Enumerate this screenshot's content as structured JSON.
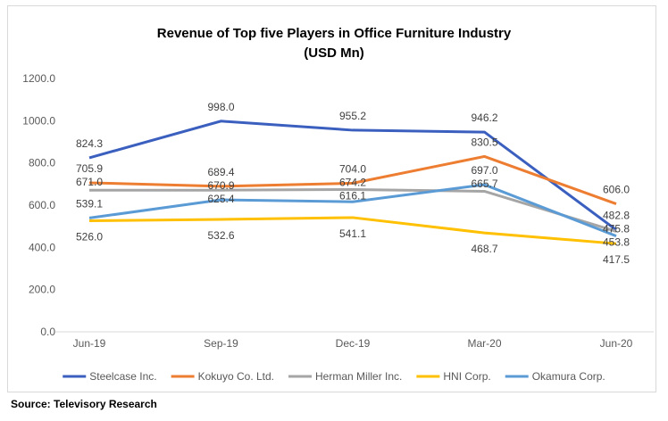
{
  "chart_data": {
    "type": "line",
    "title": "Revenue of Top five Players in Office Furniture Industry",
    "subtitle": "(USD Mn)",
    "categories": [
      "Jun-19",
      "Sep-19",
      "Dec-19",
      "Mar-20",
      "Jun-20"
    ],
    "ylim": [
      0,
      1200
    ],
    "yticks": [
      "0.0",
      "200.0",
      "400.0",
      "600.0",
      "800.0",
      "1000.0",
      "1200.0"
    ],
    "grid": false,
    "legend": "bottom",
    "series": [
      {
        "name": "Steelcase Inc.",
        "color": "#3a5fbf",
        "values": [
          824.3,
          998.0,
          955.2,
          946.2,
          482.8
        ],
        "labels": [
          "824.3",
          "998.0",
          "955.2",
          "946.2",
          "482.8"
        ]
      },
      {
        "name": "Kokuyo Co. Ltd.",
        "color": "#ed7d31",
        "values": [
          705.9,
          689.4,
          704.0,
          830.5,
          606.0
        ],
        "labels": [
          "705.9",
          "689.4",
          "704.0",
          "830.5",
          "606.0"
        ]
      },
      {
        "name": "Herman Miller Inc.",
        "color": "#a5a5a5",
        "values": [
          671.0,
          670.9,
          674.2,
          665.7,
          475.8
        ],
        "labels": [
          "671.0",
          "670.9",
          "674.2",
          "665.7",
          "475.8"
        ]
      },
      {
        "name": "HNI Corp.",
        "color": "#ffc000",
        "values": [
          526.0,
          532.6,
          541.1,
          468.7,
          417.5
        ],
        "labels": [
          "526.0",
          "532.6",
          "541.1",
          "468.7",
          "417.5"
        ]
      },
      {
        "name": "Okamura Corp.",
        "color": "#5b9bd5",
        "values": [
          539.1,
          625.4,
          616.1,
          697.0,
          453.8
        ],
        "labels": [
          "539.1",
          "625.4",
          "616.1",
          "697.0",
          "453.8"
        ]
      }
    ]
  },
  "source": "Source: Televisory Research"
}
